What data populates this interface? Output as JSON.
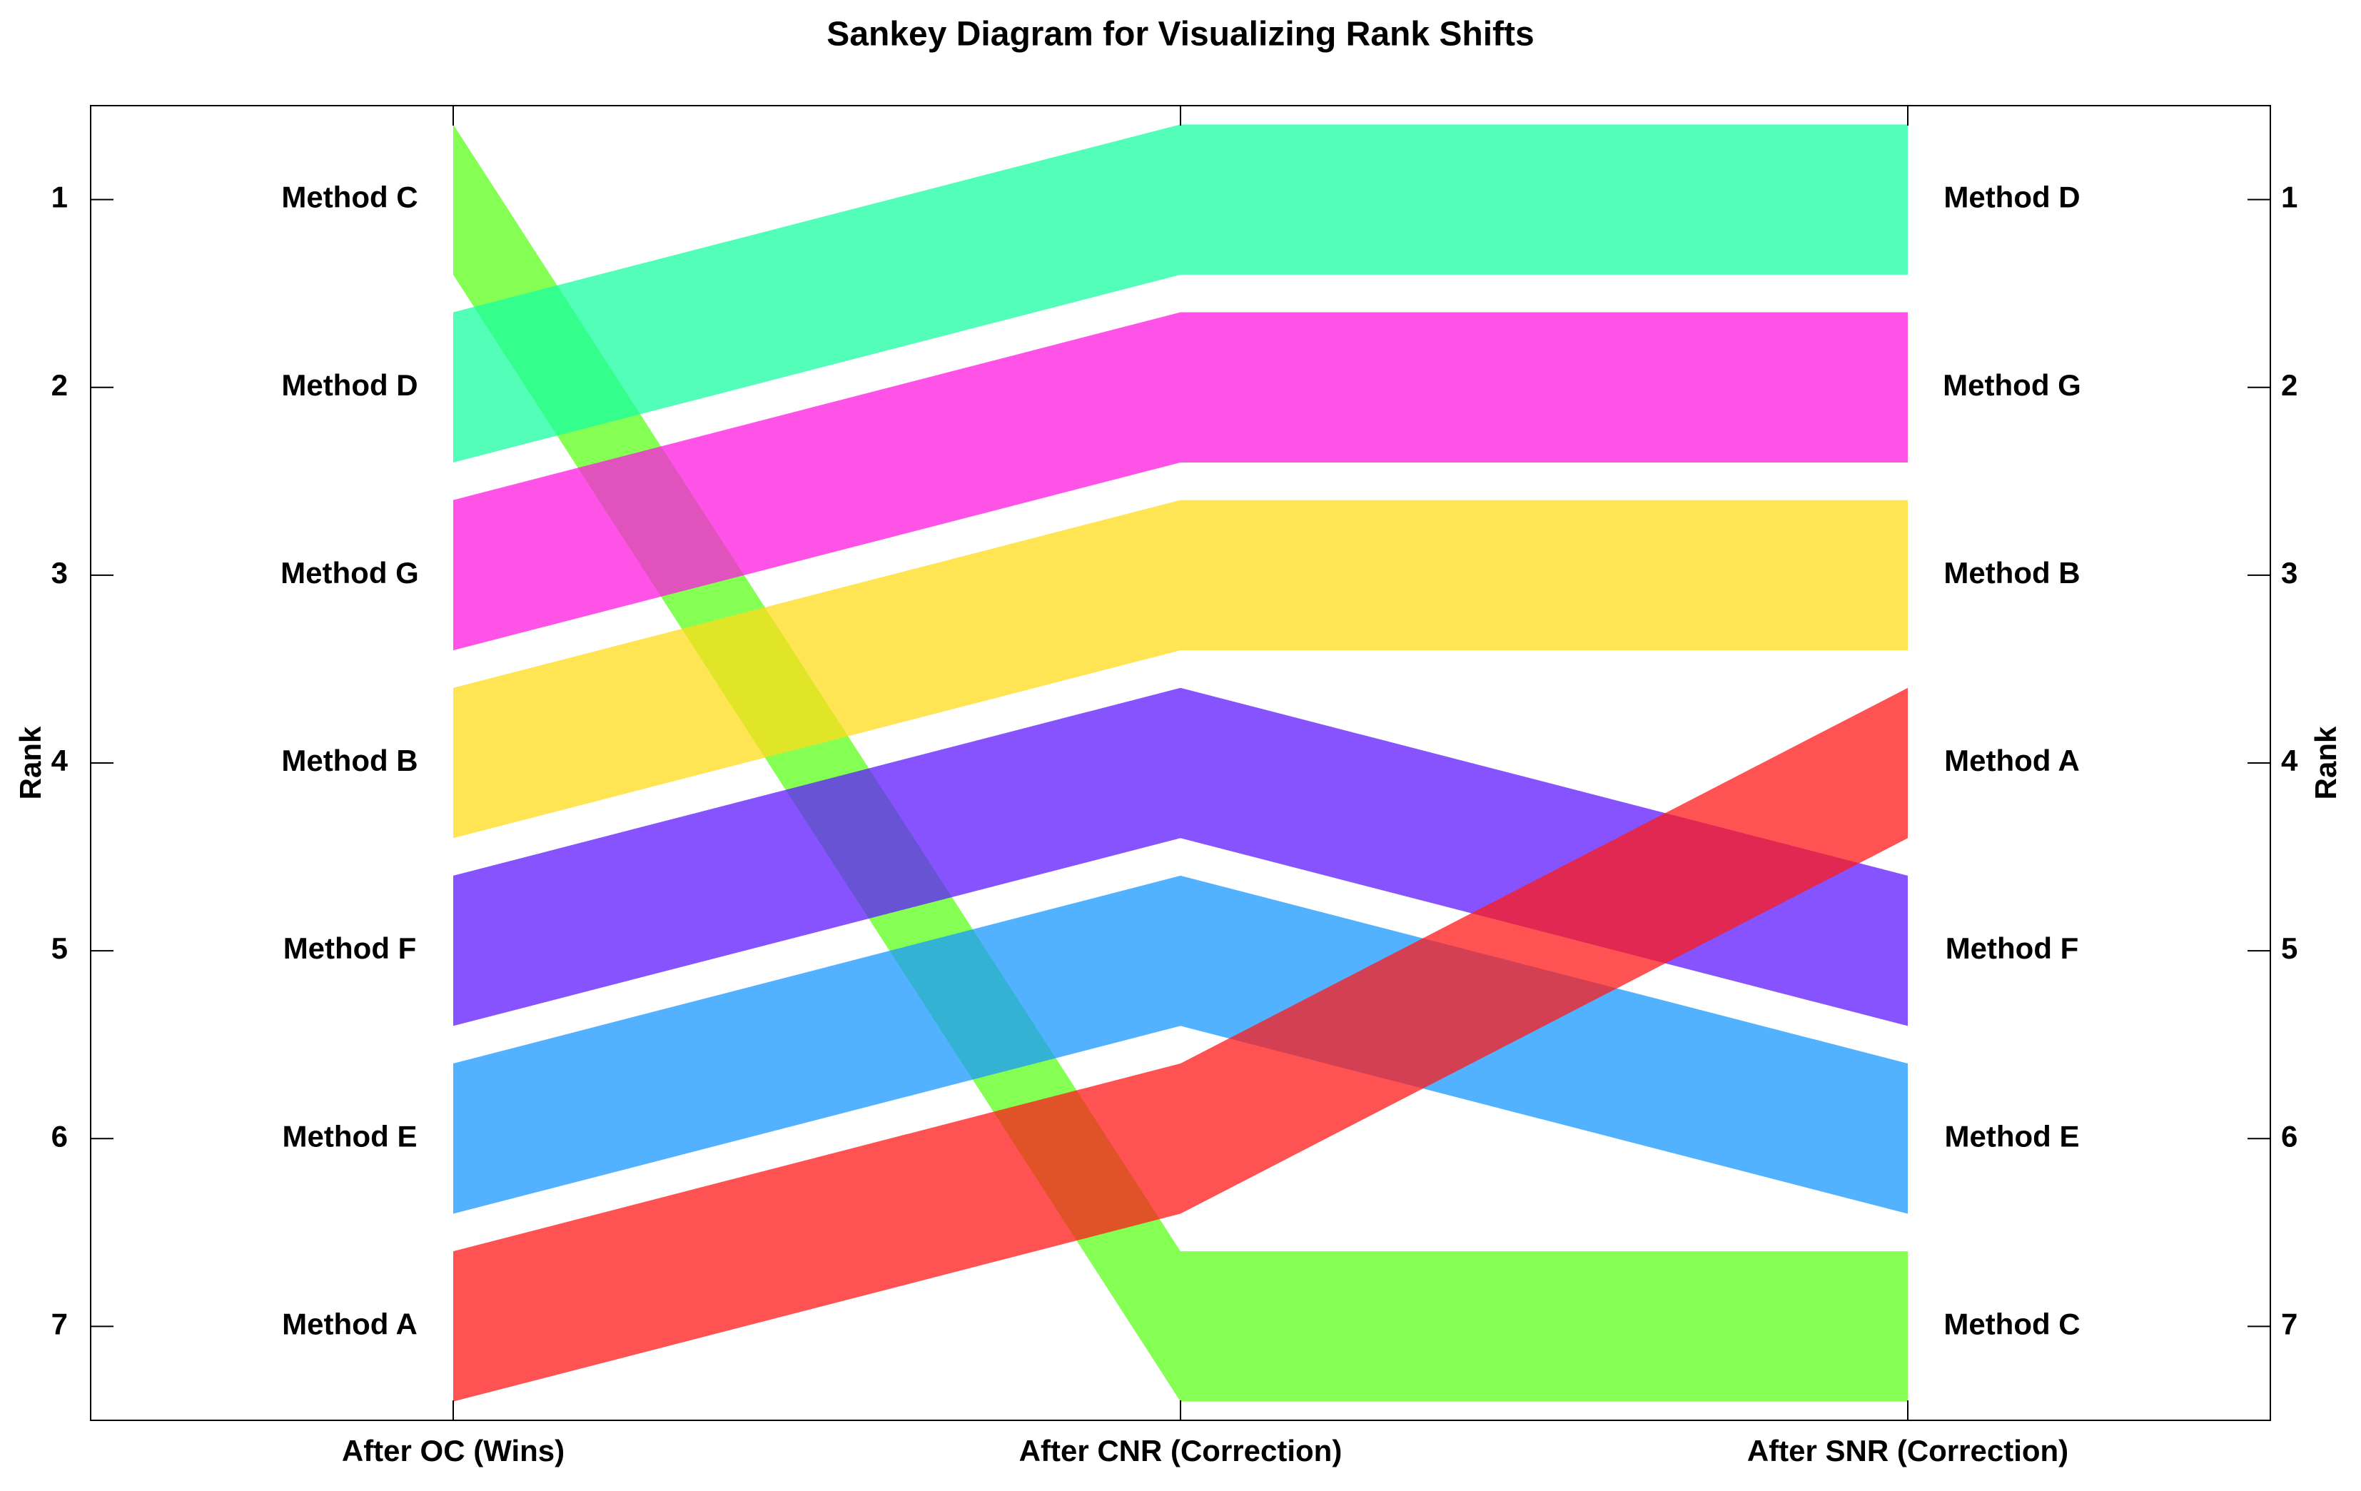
{
  "chart_data": {
    "type": "sankey",
    "title": "Sankey Diagram for Visualizing Rank Shifts",
    "ylabel": "Rank",
    "categories": [
      "After OC (Wins)",
      "After CNR (Correction)",
      "After SNR (Correction)"
    ],
    "series": [
      {
        "name": "Method C",
        "color": "#5cff1a",
        "values": [
          1,
          7,
          7
        ]
      },
      {
        "name": "Method D",
        "color": "#1affa0",
        "values": [
          2,
          1,
          1
        ]
      },
      {
        "name": "Method G",
        "color": "#ff1ae0",
        "values": [
          3,
          2,
          2
        ]
      },
      {
        "name": "Method B",
        "color": "#ffdc1a",
        "values": [
          4,
          3,
          3
        ]
      },
      {
        "name": "Method F",
        "color": "#5e1aff",
        "values": [
          5,
          4,
          5
        ]
      },
      {
        "name": "Method E",
        "color": "#1a98ff",
        "values": [
          6,
          5,
          6
        ]
      },
      {
        "name": "Method A",
        "color": "#ff1a1a",
        "values": [
          7,
          6,
          4
        ]
      }
    ],
    "ylim": [
      7.5,
      0.5
    ],
    "yticks": [
      1,
      2,
      3,
      4,
      5,
      6,
      7
    ]
  }
}
